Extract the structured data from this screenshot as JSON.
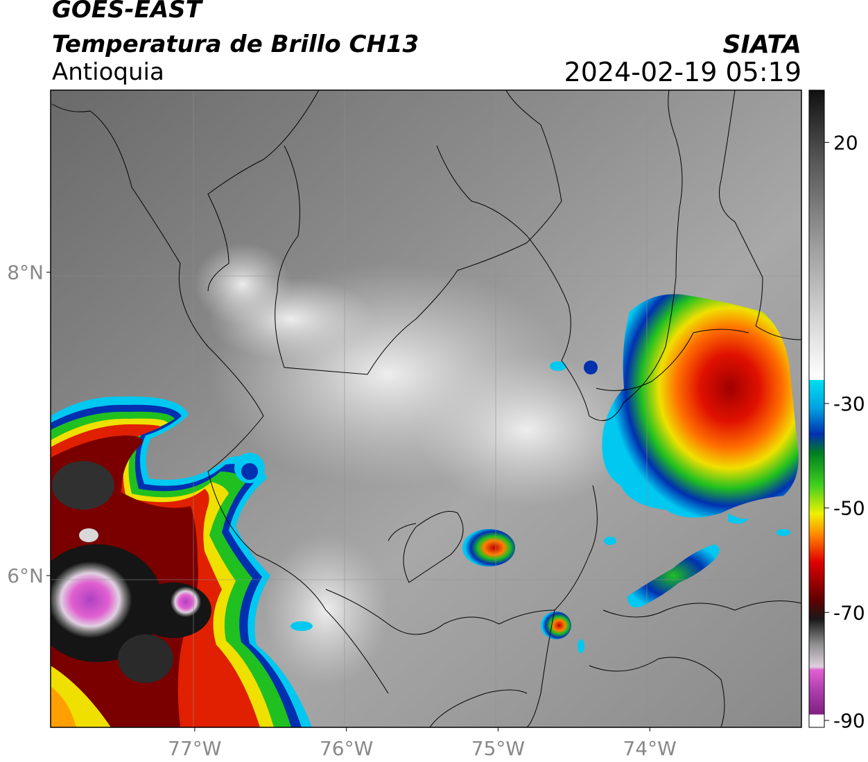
{
  "header": {
    "satellite": "GOES-EAST",
    "product": "Temperatura de Brillo CH13",
    "region": "Antioquia",
    "organization": "SIATA",
    "datetime": "2024-02-19 05:19"
  },
  "map": {
    "lon_range": [
      -77.95,
      -73.0
    ],
    "lat_range": [
      5.0,
      9.2
    ],
    "x_ticks": [
      {
        "lon": -77,
        "label": "77°W"
      },
      {
        "lon": -76,
        "label": "76°W"
      },
      {
        "lon": -75,
        "label": "75°W"
      },
      {
        "lon": -74,
        "label": "74°W"
      }
    ],
    "y_ticks": [
      {
        "lat": 8,
        "label": "8°N"
      },
      {
        "lat": 6,
        "label": "6°N"
      }
    ],
    "gridlines": true,
    "storm_cells": [
      {
        "name": "west-large-system",
        "lon": -77.3,
        "lat": 5.85,
        "core_temp": -88
      },
      {
        "name": "west-secondary-core",
        "lon": -77.0,
        "lat": 5.95,
        "core_temp": -85
      },
      {
        "name": "northeast-system",
        "lon": -73.5,
        "lat": 7.25,
        "core_temp": -65
      },
      {
        "name": "central-cell",
        "lon": -74.98,
        "lat": 6.2,
        "core_temp": -58
      },
      {
        "name": "south-cell",
        "lon": -74.57,
        "lat": 5.63,
        "core_temp": -62
      },
      {
        "name": "east-band",
        "lon": -73.9,
        "lat": 6.05,
        "core_temp": -40
      }
    ]
  },
  "colorbar": {
    "ticks": [
      {
        "value": 20,
        "label": "20"
      },
      {
        "value": -30,
        "label": "-30"
      },
      {
        "value": -50,
        "label": "-50"
      },
      {
        "value": -70,
        "label": "-70"
      },
      {
        "value": -90,
        "label": "-90"
      }
    ],
    "colors": {
      "gray_warm": "#202020",
      "gray_cool": "#f4f4f4",
      "cyan": "#00d8f0",
      "blue": "#0030b0",
      "green": "#10c020",
      "yellow": "#f0f000",
      "orange": "#ff8000",
      "red": "#e00000",
      "darkred": "#600000",
      "black": "#101010",
      "pink": "#e060d0",
      "purple": "#902090"
    }
  }
}
